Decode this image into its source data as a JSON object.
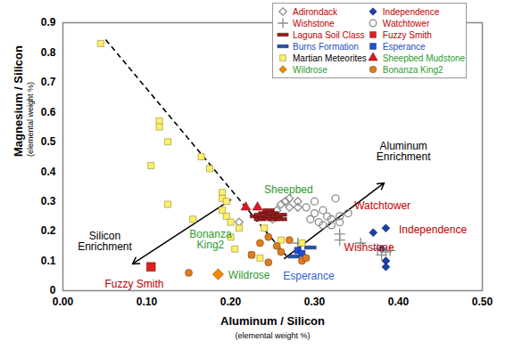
{
  "chart_data": {
    "type": "scatter",
    "xlabel": [
      "Aluminum / Silicon",
      "(elemental weight %)"
    ],
    "ylabel": [
      "Magnesium / Silicon",
      "(elemental weight %)"
    ],
    "xlim": [
      0,
      0.5
    ],
    "ylim": [
      0,
      0.9
    ],
    "xticks": [
      {
        "value": 0,
        "label": "0.00"
      },
      {
        "value": 0.1,
        "label": "0.10"
      },
      {
        "value": 0.2,
        "label": "0.20"
      },
      {
        "value": 0.3,
        "label": "0.30"
      },
      {
        "value": 0.4,
        "label": "0.40"
      },
      {
        "value": 0.5,
        "label": "0.50"
      }
    ],
    "yticks": [
      0,
      0.1,
      0.2,
      0.3,
      0.4,
      0.5,
      0.6,
      0.7,
      0.8,
      0.9
    ],
    "grid": false,
    "legend": "top-right",
    "series": [
      {
        "name": "Adirondack",
        "color": "#8c8c8c",
        "marker": "diamond-open",
        "x": [
          0.21,
          0.25,
          0.255,
          0.26,
          0.265,
          0.27,
          0.27,
          0.28,
          0.28
        ],
        "values": [
          0.23,
          0.24,
          0.27,
          0.29,
          0.3,
          0.31,
          0.28,
          0.3,
          0.28
        ]
      },
      {
        "name": "Independence",
        "color": "#1c3fa8",
        "marker": "diamond",
        "x": [
          0.37,
          0.385,
          0.38,
          0.385,
          0.385
        ],
        "values": [
          0.195,
          0.21,
          0.14,
          0.1,
          0.08
        ]
      },
      {
        "name": "Wishstone",
        "color": "#8c8c8c",
        "marker": "plus",
        "x": [
          0.28,
          0.33,
          0.33,
          0.355,
          0.375,
          0.385,
          0.39,
          0.38
        ],
        "values": [
          0.16,
          0.17,
          0.19,
          0.16,
          0.14,
          0.13,
          0.135,
          0.12
        ]
      },
      {
        "name": "Watchtower",
        "color": "#8c8c8c",
        "marker": "circle-open",
        "x": [
          0.29,
          0.3,
          0.31,
          0.315,
          0.32,
          0.33,
          0.31,
          0.32,
          0.33,
          0.325,
          0.3,
          0.34,
          0.305,
          0.295
        ],
        "values": [
          0.28,
          0.26,
          0.27,
          0.25,
          0.24,
          0.23,
          0.22,
          0.22,
          0.25,
          0.31,
          0.3,
          0.26,
          0.23,
          0.24
        ]
      },
      {
        "name": "Laguna Soil Class",
        "color": "#9b1c1c",
        "marker": "dash",
        "x": [
          0.23,
          0.235,
          0.24,
          0.24,
          0.245,
          0.25,
          0.25,
          0.255,
          0.26,
          0.245,
          0.235,
          0.26
        ],
        "values": [
          0.25,
          0.24,
          0.26,
          0.245,
          0.25,
          0.26,
          0.24,
          0.25,
          0.255,
          0.27,
          0.255,
          0.24
        ]
      },
      {
        "name": "Fuzzy Smith",
        "color": "#e02020",
        "marker": "square",
        "x": [
          0.105
        ],
        "values": [
          0.08
        ]
      },
      {
        "name": "Burns Formation",
        "color": "#2a4fa8",
        "marker": "dash",
        "x": [
          0.275,
          0.295
        ],
        "values": [
          0.115,
          0.145
        ]
      },
      {
        "name": "Esperance",
        "color": "#1f4fd6",
        "marker": "square",
        "x": [
          0.28,
          0.285
        ],
        "values": [
          0.135,
          0.125
        ]
      },
      {
        "name": "Martian Meteorites",
        "color": "#fff066",
        "marker": "square",
        "x": [
          0.045,
          0.115,
          0.115,
          0.125,
          0.105,
          0.165,
          0.175,
          0.125,
          0.155,
          0.19,
          0.19,
          0.195,
          0.19,
          0.195,
          0.2,
          0.21,
          0.2,
          0.205,
          0.225,
          0.235,
          0.26,
          0.285,
          0.24
        ],
        "values": [
          0.83,
          0.57,
          0.55,
          0.5,
          0.42,
          0.45,
          0.41,
          0.29,
          0.24,
          0.33,
          0.31,
          0.3,
          0.27,
          0.25,
          0.23,
          0.21,
          0.18,
          0.14,
          0.12,
          0.11,
          0.17,
          0.16,
          0.21
        ]
      },
      {
        "name": "Sheepbed Mudstone",
        "color": "#e0161e",
        "marker": "triangle",
        "x": [
          0.218,
          0.232
        ],
        "values": [
          0.28,
          0.28
        ]
      },
      {
        "name": "Wildrose",
        "color": "#f08a00",
        "marker": "diamond",
        "x": [
          0.185
        ],
        "values": [
          0.055
        ]
      },
      {
        "name": "Bonanza King2",
        "color": "#e07b1e",
        "marker": "circle",
        "x": [
          0.15,
          0.225,
          0.235,
          0.245,
          0.255,
          0.26,
          0.27,
          0.285,
          0.29,
          0.245
        ],
        "values": [
          0.06,
          0.12,
          0.16,
          0.18,
          0.15,
          0.13,
          0.17,
          0.1,
          0.11,
          0.095
        ]
      }
    ],
    "lines": [
      {
        "x1": 0.051,
        "y1": 0.843,
        "x2": 0.269,
        "y2": 0.108,
        "line_style": "dashed"
      }
    ],
    "arrows": [
      {
        "x1": 0.2,
        "y1": 0.305,
        "x2": 0.083,
        "y2": 0.09
      },
      {
        "x1": 0.264,
        "y1": 0.108,
        "x2": 0.383,
        "y2": 0.362
      }
    ],
    "annotations": [
      {
        "text": "Silicon\nEnrichment",
        "x": 0.05,
        "y": 0.165,
        "color": "#000000"
      },
      {
        "text": "Aluminum\nEnrichment",
        "x": 0.406,
        "y": 0.466,
        "color": "#000000"
      },
      {
        "text": "Sheepbed",
        "x": 0.269,
        "y": 0.338,
        "color": "#2e9b2e"
      },
      {
        "text": "Watchtower",
        "x": 0.381,
        "y": 0.284,
        "color": "#c00000"
      },
      {
        "text": "Independence",
        "x": 0.441,
        "y": 0.203,
        "color": "#c00000"
      },
      {
        "text": "Wishstone",
        "x": 0.365,
        "y": 0.144,
        "color": "#c00000"
      },
      {
        "text": "Esperance",
        "x": 0.293,
        "y": 0.048,
        "color": "#2f5fd0"
      },
      {
        "text": "Wildrose",
        "x": 0.222,
        "y": 0.052,
        "color": "#2e9b2e"
      },
      {
        "text": "Bonanza\nKing2",
        "x": 0.176,
        "y": 0.17,
        "color": "#2e9b2e"
      },
      {
        "text": "Fuzzy Smith",
        "x": 0.085,
        "y": 0.022,
        "color": "#c00000"
      }
    ]
  }
}
